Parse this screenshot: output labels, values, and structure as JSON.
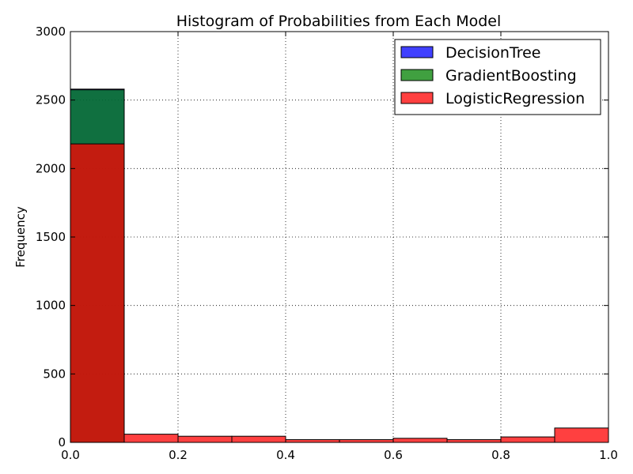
{
  "chart_data": {
    "type": "bar",
    "title": "Histogram of Probabilities from Each Model",
    "xlabel": "",
    "ylabel": "Frequency",
    "xlim": [
      0.0,
      1.0
    ],
    "ylim": [
      0,
      3000
    ],
    "x_ticks": [
      "0.0",
      "0.2",
      "0.4",
      "0.6",
      "0.8",
      "1.0"
    ],
    "y_ticks": [
      "0",
      "500",
      "1000",
      "1500",
      "2000",
      "2500",
      "3000"
    ],
    "bin_edges": [
      0.0,
      0.1,
      0.2,
      0.3,
      0.4,
      0.5,
      0.6,
      0.7,
      0.8,
      0.9,
      1.0
    ],
    "grid": true,
    "legend_position": "top-right",
    "series": [
      {
        "name": "DecisionTree",
        "color": "#0000ff",
        "values": [
          2580,
          0,
          0,
          0,
          0,
          0,
          0,
          0,
          0,
          0
        ]
      },
      {
        "name": "GradientBoosting",
        "color": "#008000",
        "values": [
          2575,
          0,
          0,
          0,
          0,
          0,
          0,
          0,
          0,
          0
        ]
      },
      {
        "name": "LogisticRegression",
        "color": "#ff0000",
        "values": [
          2180,
          60,
          45,
          45,
          20,
          20,
          30,
          20,
          40,
          105
        ]
      }
    ],
    "alpha": 0.75
  }
}
